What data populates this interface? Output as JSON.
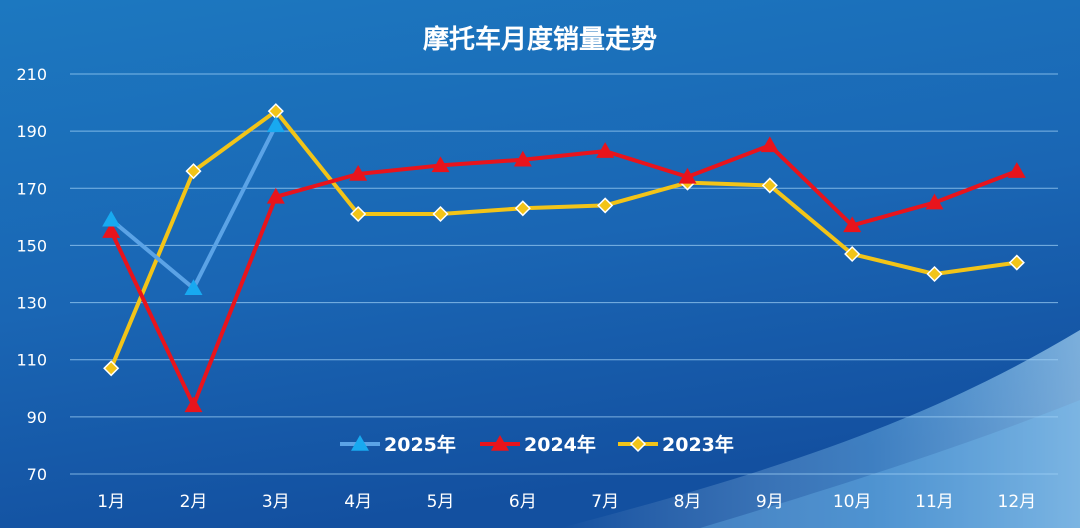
{
  "chart_data": {
    "type": "line",
    "title": "摩托车月度销量走势",
    "categories": [
      "1月",
      "2月",
      "3月",
      "4月",
      "5月",
      "6月",
      "7月",
      "8月",
      "9月",
      "10月",
      "11月",
      "12月"
    ],
    "ylim": [
      70,
      210
    ],
    "yticks": [
      70,
      90,
      110,
      130,
      150,
      170,
      190,
      210
    ],
    "grid": true,
    "legend_position": "bottom-center",
    "series": [
      {
        "name": "2025年",
        "color": "#5ba3e6",
        "marker": "triangle",
        "marker_color": "#18a9f0",
        "values": [
          159,
          135,
          192,
          null,
          null,
          null,
          null,
          null,
          null,
          null,
          null,
          null
        ]
      },
      {
        "name": "2024年",
        "color": "#e8141c",
        "marker": "triangle",
        "marker_color": "#e8141c",
        "values": [
          155,
          94,
          167,
          175,
          178,
          180,
          183,
          174,
          185,
          157,
          165,
          176
        ]
      },
      {
        "name": "2023年",
        "color": "#f2c418",
        "marker": "diamond",
        "marker_color": "#f2c418",
        "values": [
          107,
          176,
          197,
          161,
          161,
          163,
          164,
          172,
          171,
          147,
          140,
          144
        ]
      }
    ]
  }
}
